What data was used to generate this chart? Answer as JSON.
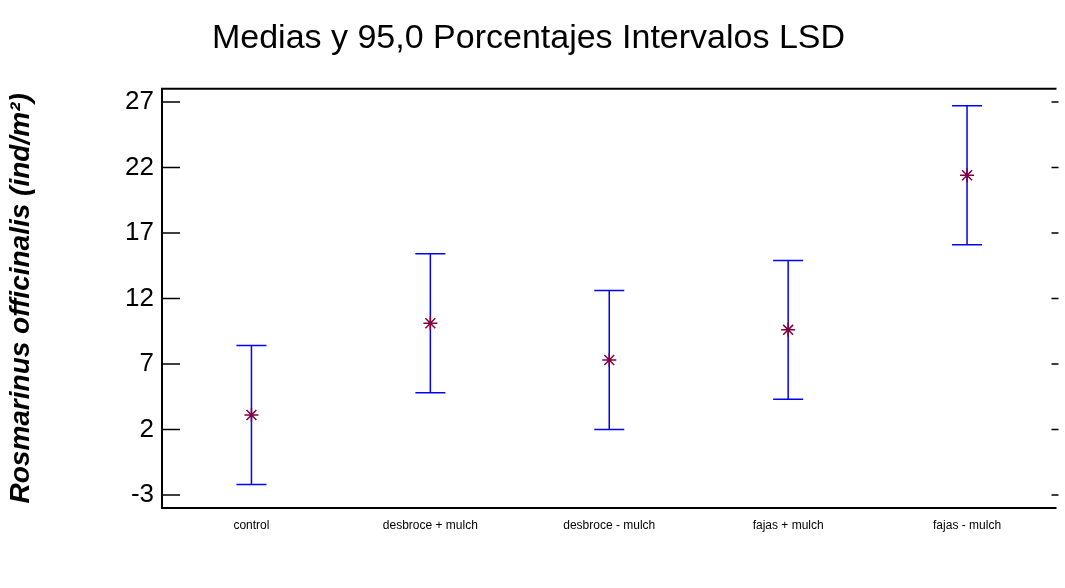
{
  "chart_data": {
    "type": "scatter",
    "title": "Medias y 95,0 Porcentajes Intervalos LSD",
    "ylabel": "Rosmarinus officinalis (ind/m²)",
    "categories": [
      "control",
      "desbroce + mulch",
      "desbroce - mulch",
      "fajas + mulch",
      "fajas - mulch"
    ],
    "values": [
      3.1,
      10.1,
      7.3,
      9.6,
      21.4
    ],
    "errors": [
      5.3,
      5.3,
      5.3,
      5.3,
      5.3
    ],
    "color": "#800040",
    "marker": "cross",
    "grid": false,
    "legend": false,
    "ylim": [
      -4,
      28
    ],
    "yticks": [
      -3,
      2,
      7,
      12,
      17,
      22,
      27
    ],
    "tick_labels": "xy"
  }
}
